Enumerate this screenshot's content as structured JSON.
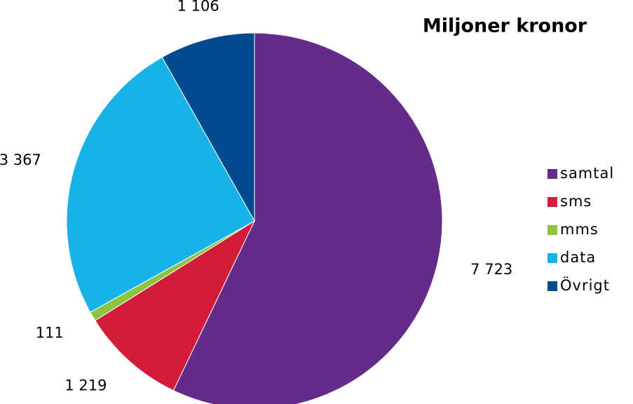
{
  "chart_data": {
    "type": "pie",
    "title": "Miljoner kronor",
    "categories": [
      "samtal",
      "sms",
      "mms",
      "data",
      "Övrigt"
    ],
    "values": [
      7723,
      1219,
      111,
      3367,
      1106
    ],
    "value_labels": [
      "7 723",
      "1 219",
      "111",
      "3 367",
      "1 106"
    ],
    "colors": [
      "#652b8a",
      "#d31c3a",
      "#8dc43f",
      "#17b3e8",
      "#004b8d"
    ],
    "legend": "right"
  }
}
